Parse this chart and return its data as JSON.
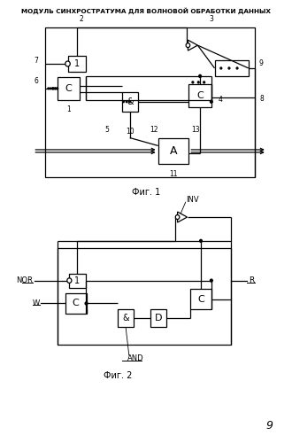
{
  "title": "МОДУЛЬ СИНХРОСТРАТУМА ДЛЯ ВОЛНОВОЙ ОБРАБОТКИ ДАННЫХ",
  "fig1_label": "Фиг. 1",
  "fig2_label": "Фиг. 2",
  "page_num": "9",
  "bg_color": "#ffffff",
  "line_color": "#000000"
}
